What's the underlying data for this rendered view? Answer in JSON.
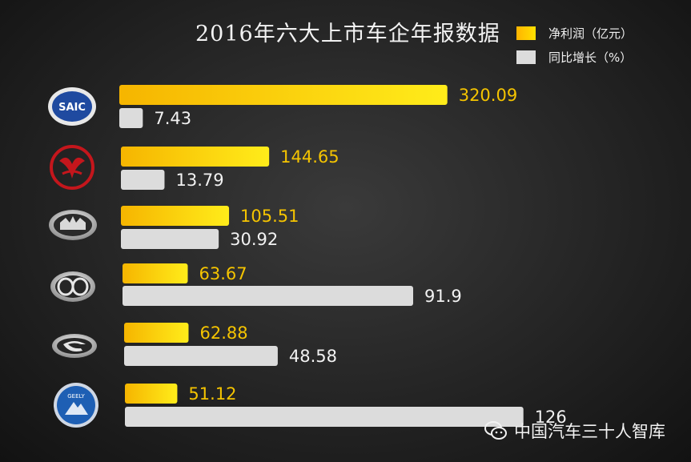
{
  "chart_data": {
    "type": "bar",
    "title": "2016年六大上市车企年报数据",
    "categories": [
      "SAIC",
      "Dongfeng",
      "Great Wall",
      "BAIC",
      "GAC",
      "Geely"
    ],
    "series": [
      {
        "name": "净利润（亿元）",
        "values": [
          320.09,
          144.65,
          105.51,
          63.67,
          62.88,
          51.12
        ],
        "color": "#f5c400"
      },
      {
        "name": "同比增长（%）",
        "values": [
          7.43,
          13.79,
          30.92,
          91.9,
          48.58,
          126
        ],
        "color": "#dcdcdc"
      }
    ],
    "value_labels": [
      [
        "320.09",
        "144.65",
        "105.51",
        "63.67",
        "62.88",
        "51.12"
      ],
      [
        "7.43",
        "13.79",
        "30.92",
        "91.9",
        "48.58",
        "126"
      ]
    ],
    "legend": "top-right",
    "grid": false
  },
  "logos": {
    "saic_text": "SAIC",
    "geely_text": "GEELY"
  },
  "watermark": {
    "text": "中国汽车三十人智库",
    "icon": "wechat-icon"
  },
  "colors": {
    "profit": "#f5c400",
    "growth": "#dcdcdc"
  }
}
